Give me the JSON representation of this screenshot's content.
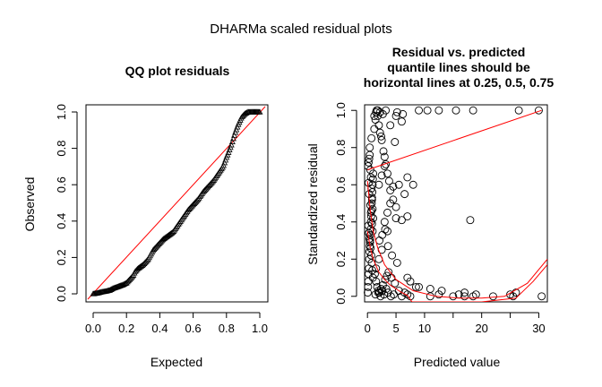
{
  "figure_title": "DHARMa scaled residual plots",
  "colors": {
    "points": "#000000",
    "reference": "#ff0000",
    "background": "#ffffff"
  },
  "chart_data": [
    {
      "type": "scatter",
      "title": "QQ plot residuals",
      "xlabel": "Expected",
      "ylabel": "Observed",
      "xlim": [
        0,
        1
      ],
      "ylim": [
        0,
        1
      ],
      "xticks": [
        "0.0",
        "0.2",
        "0.4",
        "0.6",
        "0.8",
        "1.0"
      ],
      "yticks": [
        "0.0",
        "0.2",
        "0.4",
        "0.6",
        "0.8",
        "1.0"
      ],
      "marker": "triangle",
      "grid": false,
      "reference_line": {
        "from": [
          0,
          0
        ],
        "to": [
          1,
          1
        ]
      },
      "series": [
        {
          "x": [
            0.0,
            0.03,
            0.05,
            0.08,
            0.1,
            0.12,
            0.15,
            0.18,
            0.2,
            0.22,
            0.24,
            0.25,
            0.27,
            0.3,
            0.33,
            0.36,
            0.39,
            0.42,
            0.45,
            0.48,
            0.51,
            0.54,
            0.57,
            0.6,
            0.63,
            0.66,
            0.69,
            0.72,
            0.75,
            0.78,
            0.8,
            0.83,
            0.85,
            0.87,
            0.89,
            0.91,
            0.93,
            0.95,
            0.97,
            1.0
          ],
          "y": [
            0.0,
            0.005,
            0.01,
            0.015,
            0.02,
            0.03,
            0.04,
            0.05,
            0.06,
            0.08,
            0.1,
            0.12,
            0.14,
            0.16,
            0.19,
            0.24,
            0.27,
            0.3,
            0.32,
            0.34,
            0.38,
            0.42,
            0.46,
            0.49,
            0.52,
            0.56,
            0.59,
            0.62,
            0.66,
            0.7,
            0.75,
            0.82,
            0.88,
            0.93,
            0.97,
            0.99,
            1.0,
            1.0,
            1.0,
            1.0
          ]
        }
      ]
    },
    {
      "type": "scatter",
      "title": "Residual vs. predicted\nquantile lines should be\nhorizontal lines at 0.25, 0.5, 0.75",
      "xlabel": "Predicted value",
      "ylabel": "Standardized residual",
      "xlim": [
        -0.5,
        31.5
      ],
      "ylim": [
        -0.03,
        1.03
      ],
      "xticks": [
        "0",
        "5",
        "10",
        "20",
        "30"
      ],
      "yticks": [
        "0.0",
        "0.2",
        "0.4",
        "0.6",
        "0.8",
        "1.0"
      ],
      "marker": "circle",
      "grid": false,
      "series": [
        {
          "x": [
            0.05,
            0.1,
            0.15,
            0.2,
            0.25,
            0.3,
            0.35,
            0.4,
            0.45,
            0.5,
            0.55,
            0.6,
            0.65,
            0.7,
            0.75,
            0.8,
            0.85,
            0.9,
            0.95,
            1.0,
            0.1,
            0.2,
            0.3,
            0.4,
            0.5,
            0.6,
            0.7,
            0.8,
            0.9,
            1.0,
            0.15,
            0.25,
            0.35,
            0.45,
            0.55,
            0.65,
            0.75,
            0.85,
            0.95,
            0.3,
            0.6,
            0.9,
            0.2,
            0.5,
            0.8,
            0.4,
            0.7,
            1.2,
            1.4,
            1.6,
            1.8,
            2.0,
            2.2,
            2.5,
            2.8,
            3.0,
            3.2,
            3.5,
            3.8,
            4.0,
            4.5,
            5.0,
            1.3,
            1.5,
            1.7,
            1.9,
            2.1,
            2.4,
            2.7,
            3.1,
            3.4,
            3.7,
            4.2,
            4.8,
            1.4,
            1.9,
            2.3,
            2.6,
            2.9,
            3.3,
            3.6,
            4.1,
            4.6,
            5.5,
            6.0,
            6.5,
            7.0,
            7.5,
            2.1,
            2.6,
            3.1,
            3.6,
            4.3,
            5.2,
            2.0,
            2.5,
            3.0,
            4.0,
            5.0,
            6.0,
            7.0,
            8.0,
            1.5,
            2.0,
            2.5,
            3.0,
            3.5,
            4.0,
            5.0,
            6.0,
            7.0,
            9.0,
            11.0,
            12.5,
            15.0,
            17.0,
            18.5,
            19.0,
            22.0,
            25.0,
            25.5,
            26.0,
            30.5,
            9.0,
            10.5,
            12.5,
            15.5,
            18.5,
            18.0,
            11.0,
            13.0,
            16.0,
            17.0,
            26.5,
            30.0,
            7.5,
            7.0,
            3.5,
            4.5,
            5.5,
            6.5,
            8.5,
            1.2,
            1.5,
            1.8,
            2.2,
            2.7,
            3.2,
            5.2,
            6.2,
            4.8,
            2.4
          ],
          "y": [
            0.02,
            0.05,
            0.08,
            0.12,
            0.15,
            0.2,
            0.24,
            0.27,
            0.3,
            0.33,
            0.36,
            0.4,
            0.43,
            0.46,
            0.5,
            0.53,
            0.56,
            0.6,
            0.63,
            0.66,
            0.7,
            0.72,
            0.74,
            0.76,
            0.68,
            0.64,
            0.58,
            0.52,
            0.47,
            0.42,
            0.38,
            0.34,
            0.31,
            0.29,
            0.26,
            0.22,
            0.18,
            0.14,
            0.1,
            0.55,
            0.45,
            0.35,
            0.61,
            0.49,
            0.39,
            0.8,
            0.85,
            0.9,
            0.95,
            1.0,
            0.97,
            0.92,
            0.88,
            0.84,
            0.78,
            0.75,
            0.71,
            0.66,
            0.62,
            0.57,
            0.52,
            0.48,
            0.12,
            0.08,
            0.05,
            0.03,
            0.02,
            0.04,
            0.06,
            0.09,
            0.11,
            0.13,
            0.1,
            0.07,
            0.01,
            0.02,
            0.0,
            0.03,
            0.01,
            0.04,
            0.02,
            0.0,
            0.01,
            0.03,
            0.0,
            0.02,
            0.01,
            0.0,
            0.3,
            0.33,
            0.36,
            0.27,
            0.22,
            0.18,
            0.6,
            0.65,
            0.7,
            0.92,
            0.97,
            0.94,
            0.64,
            0.6,
            0.15,
            0.2,
            0.25,
            0.4,
            0.45,
            0.5,
            0.42,
            0.41,
            0.43,
            0.05,
            0.0,
            0.01,
            0.0,
            0.0,
            0.0,
            0.01,
            0.0,
            0.01,
            0.0,
            0.02,
            0.0,
            1.0,
            1.0,
            1.0,
            1.0,
            1.0,
            0.41,
            0.04,
            0.03,
            0.01,
            0.02,
            1.0,
            1.0,
            0.08,
            0.1,
            0.35,
            0.59,
            0.6,
            0.55,
            0.05,
            0.97,
            0.99,
            1.0,
            0.99,
            0.98,
            1.0,
            0.99,
            0.98,
            0.83,
            0.86
          ]
        }
      ],
      "quantile_lines": [
        {
          "level": 0.75,
          "x": [
            0.0,
            30.5
          ],
          "y": [
            0.68,
            1.0
          ]
        },
        {
          "level": 0.5,
          "x": [
            0.0,
            0.5,
            1.0,
            1.8,
            3.0,
            5.0,
            8.0,
            12.0,
            16.0,
            20.0,
            24.0,
            28.0,
            31.5
          ],
          "y": [
            0.62,
            0.46,
            0.35,
            0.26,
            0.17,
            0.09,
            0.03,
            0.0,
            -0.01,
            -0.01,
            0.0,
            0.07,
            0.2
          ]
        },
        {
          "level": 0.25,
          "x": [
            0.0,
            0.5,
            1.0,
            2.0,
            3.0,
            4.0,
            5.0,
            6.0,
            7.0,
            7.8,
            12.0,
            20.0,
            26.0,
            29.0,
            31.5
          ],
          "y": [
            0.35,
            0.26,
            0.2,
            0.13,
            0.09,
            0.06,
            0.04,
            0.02,
            0.005,
            -0.03,
            -0.03,
            -0.03,
            -0.01,
            0.08,
            0.17
          ]
        }
      ]
    }
  ]
}
